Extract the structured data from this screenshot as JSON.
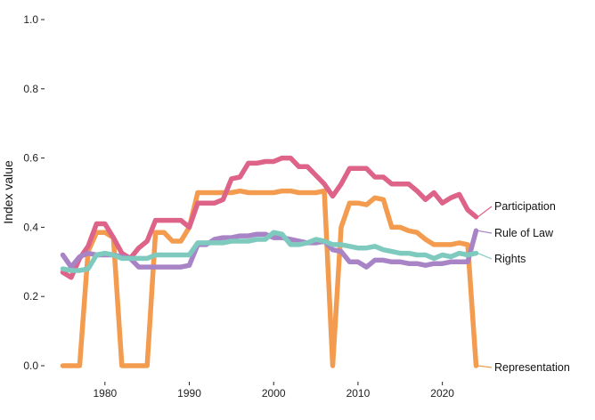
{
  "chart_data": {
    "type": "line",
    "title": "",
    "xlabel": "",
    "ylabel": "Index value",
    "xlim": [
      1974,
      2025
    ],
    "ylim": [
      0,
      1
    ],
    "x_ticks": [
      1980,
      1990,
      2000,
      2010,
      2020
    ],
    "y_ticks": [
      0.0,
      0.2,
      0.4,
      0.6,
      0.8,
      1.0
    ],
    "y_tick_labels": [
      "0.0",
      "0.2",
      "0.4",
      "0.6",
      "0.8",
      "1.0"
    ],
    "grid": false,
    "legend": "direct-labels-right",
    "x": [
      1975,
      1976,
      1977,
      1978,
      1979,
      1980,
      1981,
      1982,
      1983,
      1984,
      1985,
      1986,
      1987,
      1988,
      1989,
      1990,
      1991,
      1992,
      1993,
      1994,
      1995,
      1996,
      1997,
      1998,
      1999,
      2000,
      2001,
      2002,
      2003,
      2004,
      2005,
      2006,
      2007,
      2008,
      2009,
      2010,
      2011,
      2012,
      2013,
      2014,
      2015,
      2016,
      2017,
      2018,
      2019,
      2020,
      2021,
      2022,
      2023,
      2024
    ],
    "series": [
      {
        "name": "Representation",
        "color": "#f39b4f",
        "values": [
          0,
          0,
          0,
          0.33,
          0.385,
          0.385,
          0.37,
          0,
          0,
          0,
          0,
          0.385,
          0.385,
          0.36,
          0.36,
          0.4,
          0.5,
          0.5,
          0.5,
          0.5,
          0.5,
          0.505,
          0.5,
          0.5,
          0.5,
          0.5,
          0.505,
          0.505,
          0.5,
          0.5,
          0.5,
          0.505,
          0,
          0.4,
          0.47,
          0.47,
          0.465,
          0.485,
          0.48,
          0.4,
          0.4,
          0.39,
          0.385,
          0.365,
          0.35,
          0.35,
          0.35,
          0.355,
          0.35,
          0
        ]
      },
      {
        "name": "Participation",
        "color": "#dd6389",
        "values": [
          0.27,
          0.255,
          0.31,
          0.345,
          0.41,
          0.41,
          0.37,
          0.325,
          0.31,
          0.34,
          0.36,
          0.42,
          0.42,
          0.42,
          0.42,
          0.4,
          0.47,
          0.47,
          0.47,
          0.48,
          0.54,
          0.545,
          0.585,
          0.585,
          0.59,
          0.59,
          0.6,
          0.6,
          0.575,
          0.575,
          0.55,
          0.525,
          0.49,
          0.525,
          0.57,
          0.57,
          0.57,
          0.545,
          0.545,
          0.525,
          0.525,
          0.525,
          0.505,
          0.48,
          0.5,
          0.47,
          0.485,
          0.495,
          0.45,
          0.43
        ]
      },
      {
        "name": "Rule of Law",
        "color": "#a884c6",
        "values": [
          0.32,
          0.285,
          0.315,
          0.325,
          0.32,
          0.32,
          0.32,
          0.315,
          0.31,
          0.285,
          0.285,
          0.285,
          0.285,
          0.285,
          0.285,
          0.29,
          0.35,
          0.35,
          0.365,
          0.37,
          0.37,
          0.375,
          0.375,
          0.38,
          0.38,
          0.37,
          0.37,
          0.365,
          0.36,
          0.355,
          0.355,
          0.36,
          0.335,
          0.33,
          0.3,
          0.3,
          0.285,
          0.305,
          0.305,
          0.3,
          0.3,
          0.295,
          0.295,
          0.29,
          0.295,
          0.295,
          0.3,
          0.3,
          0.3,
          0.39
        ]
      },
      {
        "name": "Rights",
        "color": "#7fcabe",
        "values": [
          0.28,
          0.275,
          0.275,
          0.28,
          0.32,
          0.325,
          0.32,
          0.31,
          0.31,
          0.31,
          0.31,
          0.32,
          0.32,
          0.32,
          0.32,
          0.32,
          0.355,
          0.355,
          0.355,
          0.355,
          0.36,
          0.36,
          0.36,
          0.365,
          0.365,
          0.385,
          0.38,
          0.35,
          0.35,
          0.355,
          0.365,
          0.36,
          0.35,
          0.35,
          0.345,
          0.34,
          0.34,
          0.345,
          0.335,
          0.33,
          0.325,
          0.325,
          0.32,
          0.32,
          0.31,
          0.32,
          0.315,
          0.325,
          0.32,
          0.325
        ]
      }
    ]
  }
}
